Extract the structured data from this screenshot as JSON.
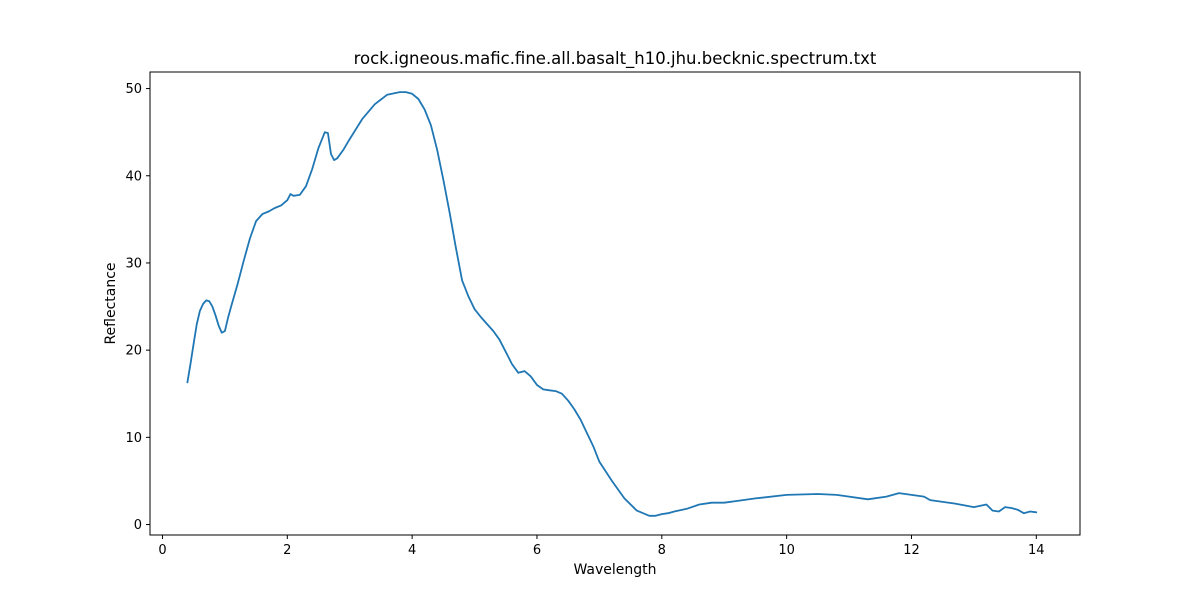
{
  "chart_data": {
    "type": "line",
    "title": "rock.igneous.mafic.fine.all.basalt_h10.jhu.becknic.spectrum.txt",
    "xlabel": "Wavelength",
    "ylabel": "Reflectance",
    "xlim": [
      -0.2,
      14.7
    ],
    "ylim": [
      -1.2,
      51.9
    ],
    "xticks": [
      0,
      2,
      4,
      6,
      8,
      10,
      12,
      14
    ],
    "yticks": [
      0,
      10,
      20,
      30,
      40,
      50
    ],
    "line_color": "#1f77b4",
    "grid": false,
    "legend": "none",
    "series": [
      {
        "x": [
          0.4,
          0.45,
          0.5,
          0.55,
          0.6,
          0.65,
          0.7,
          0.75,
          0.8,
          0.85,
          0.9,
          0.95,
          1.0,
          1.05,
          1.1,
          1.2,
          1.3,
          1.4,
          1.5,
          1.6,
          1.7,
          1.8,
          1.9,
          2.0,
          2.05,
          2.1,
          2.2,
          2.3,
          2.4,
          2.5,
          2.6,
          2.65,
          2.7,
          2.75,
          2.8,
          2.9,
          3.0,
          3.2,
          3.4,
          3.6,
          3.8,
          3.9,
          4.0,
          4.1,
          4.2,
          4.3,
          4.4,
          4.5,
          4.6,
          4.7,
          4.8,
          4.9,
          5.0,
          5.1,
          5.2,
          5.3,
          5.4,
          5.5,
          5.6,
          5.7,
          5.8,
          5.9,
          6.0,
          6.1,
          6.2,
          6.3,
          6.4,
          6.5,
          6.6,
          6.7,
          6.8,
          6.9,
          7.0,
          7.2,
          7.4,
          7.6,
          7.8,
          7.9,
          8.0,
          8.1,
          8.2,
          8.4,
          8.6,
          8.8,
          9.0,
          9.2,
          9.5,
          10.0,
          10.5,
          10.8,
          11.0,
          11.3,
          11.6,
          11.8,
          12.0,
          12.2,
          12.3,
          12.5,
          12.7,
          13.0,
          13.2,
          13.3,
          13.4,
          13.5,
          13.6,
          13.7,
          13.8,
          13.9,
          14.0
        ],
        "values": [
          16.3,
          18.5,
          20.8,
          23.0,
          24.5,
          25.3,
          25.7,
          25.6,
          25.0,
          24.0,
          22.8,
          22.0,
          22.2,
          23.7,
          25.0,
          27.5,
          30.2,
          32.8,
          34.8,
          35.6,
          35.9,
          36.3,
          36.6,
          37.2,
          37.9,
          37.7,
          37.8,
          38.8,
          40.8,
          43.2,
          45.0,
          44.9,
          42.5,
          41.8,
          42.0,
          43.0,
          44.2,
          46.5,
          48.2,
          49.3,
          49.6,
          49.6,
          49.4,
          48.8,
          47.6,
          45.8,
          43.0,
          39.5,
          35.8,
          31.8,
          28.0,
          26.2,
          24.7,
          23.8,
          23.0,
          22.2,
          21.2,
          19.8,
          18.4,
          17.4,
          17.6,
          17.0,
          16.0,
          15.5,
          15.4,
          15.3,
          15.0,
          14.2,
          13.2,
          12.0,
          10.5,
          9.0,
          7.2,
          5.0,
          3.0,
          1.6,
          1.0,
          1.0,
          1.2,
          1.3,
          1.5,
          1.8,
          2.3,
          2.5,
          2.5,
          2.7,
          3.0,
          3.4,
          3.5,
          3.4,
          3.2,
          2.9,
          3.2,
          3.6,
          3.4,
          3.2,
          2.8,
          2.6,
          2.4,
          2.0,
          2.3,
          1.6,
          1.5,
          2.0,
          1.9,
          1.7,
          1.3,
          1.5,
          1.4
        ]
      }
    ]
  }
}
